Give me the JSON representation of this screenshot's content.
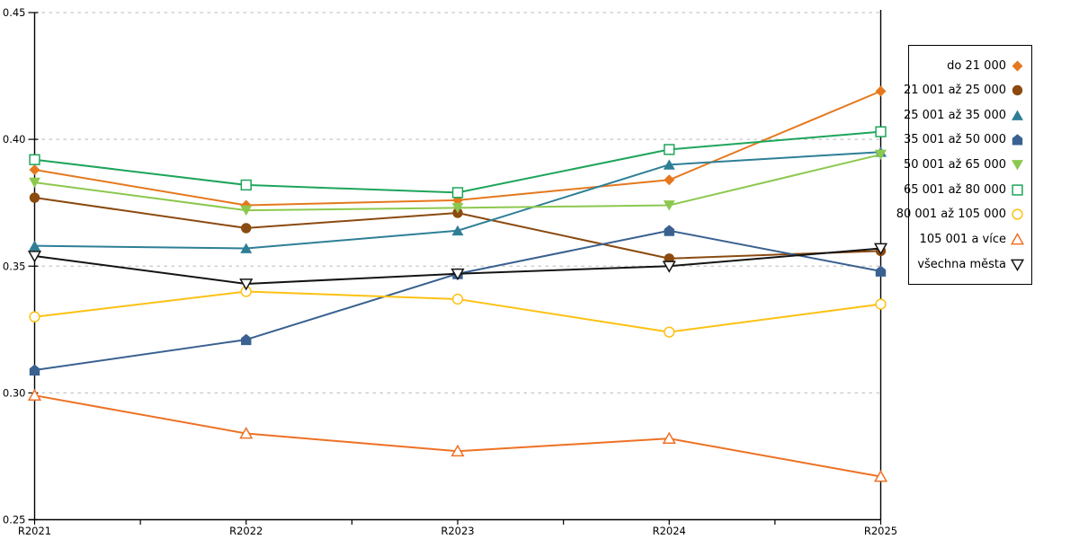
{
  "chart_data": {
    "type": "line",
    "title": "",
    "xlabel": "",
    "ylabel": "",
    "x": [
      "R2021",
      "R2022",
      "R2023",
      "R2024",
      "R2025"
    ],
    "ylim": [
      0.25,
      0.45
    ],
    "yticks": [
      0.25,
      0.3,
      0.35,
      0.4,
      0.45
    ],
    "ytick_labels": [
      "0.25",
      "0.30",
      "0.35",
      "0.40",
      "0.45"
    ],
    "grid": "horizontal-dashed",
    "grid_color": "#c6c6c6",
    "axis_color": "#000000",
    "legend_position": "right",
    "series": [
      {
        "name": "do 21 000",
        "color": "#e5781e",
        "marker": "diamond-filled",
        "values": [
          0.388,
          0.374,
          0.376,
          0.384,
          0.419
        ]
      },
      {
        "name": "21 001 až 25 000",
        "color": "#8b4a10",
        "marker": "circle-filled",
        "values": [
          0.377,
          0.365,
          0.371,
          0.353,
          0.356
        ]
      },
      {
        "name": "25 001 až 35 000",
        "color": "#2e7f96",
        "marker": "triangle-up-filled",
        "values": [
          0.358,
          0.357,
          0.364,
          0.39,
          0.395
        ]
      },
      {
        "name": "35 001 až 50 000",
        "color": "#3a6190",
        "marker": "pentagon-filled",
        "values": [
          0.309,
          0.321,
          0.347,
          0.364,
          0.348
        ]
      },
      {
        "name": "50 001 až 65 000",
        "color": "#8cc84e",
        "marker": "triangle-down-filled",
        "values": [
          0.383,
          0.372,
          0.373,
          0.374,
          0.394
        ]
      },
      {
        "name": "65 001 až 80 000",
        "color": "#1ea55b",
        "marker": "square-open",
        "values": [
          0.392,
          0.382,
          0.379,
          0.396,
          0.403
        ]
      },
      {
        "name": "80 001 až 105 000",
        "color": "#fdc113",
        "marker": "circle-open",
        "values": [
          0.33,
          0.34,
          0.337,
          0.324,
          0.335
        ]
      },
      {
        "name": "105 001 a více",
        "color": "#ee7125",
        "marker": "triangle-up-open",
        "values": [
          0.299,
          0.284,
          0.277,
          0.282,
          0.267
        ]
      },
      {
        "name": "všechna města",
        "color": "#141414",
        "marker": "triangle-down-open",
        "values": [
          0.354,
          0.343,
          0.347,
          0.35,
          0.357
        ]
      }
    ]
  }
}
